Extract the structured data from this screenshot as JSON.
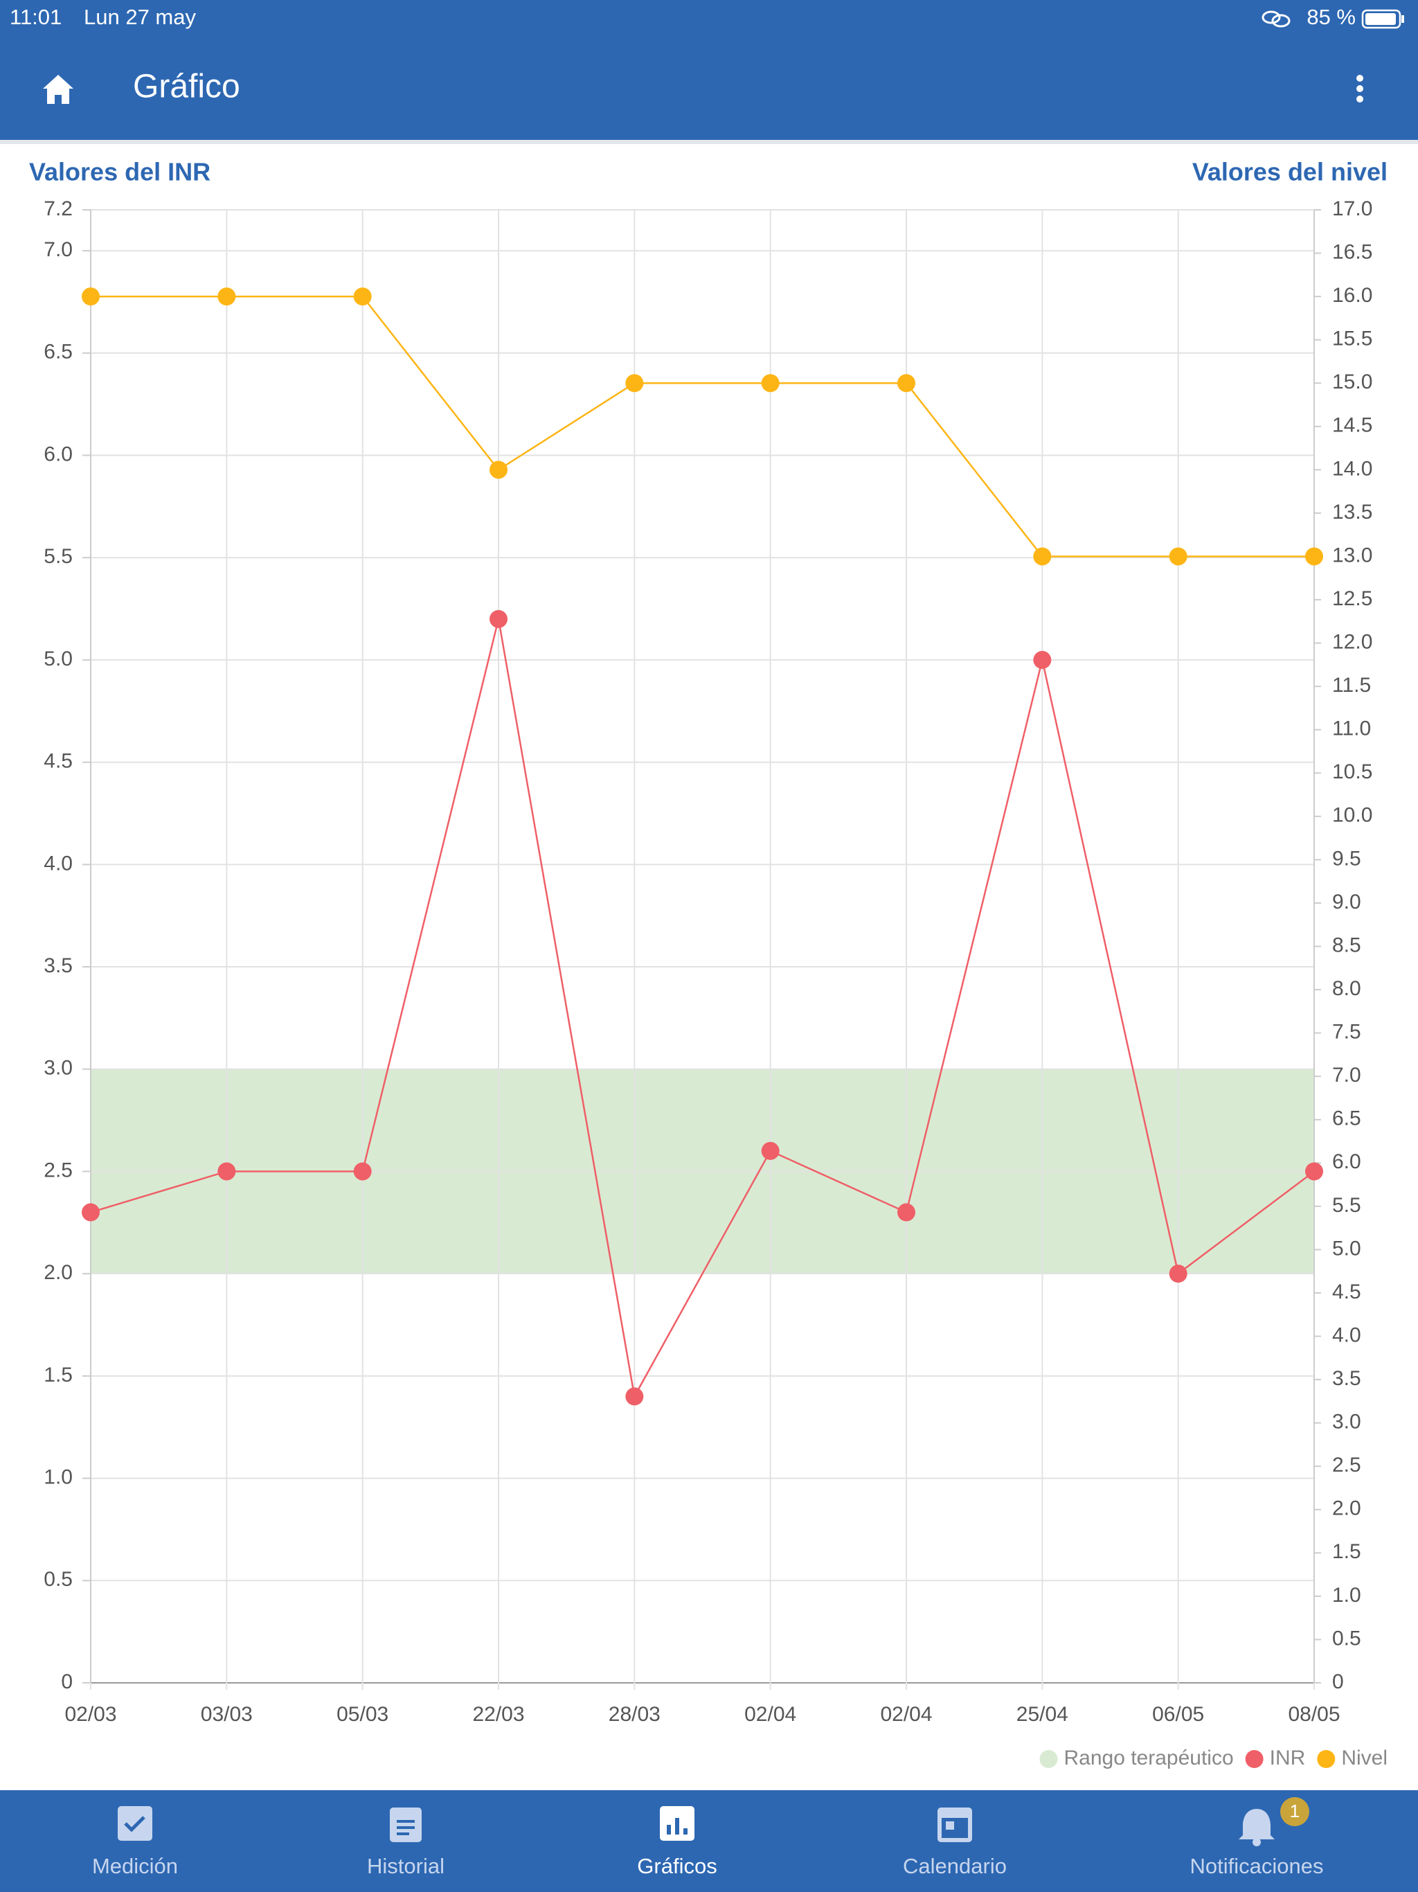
{
  "status_bar": {
    "time": "11:01",
    "date": "Lun 27 may",
    "battery": "85 %"
  },
  "app_bar": {
    "title": "Gráfico"
  },
  "chart_data": {
    "type": "line",
    "y_title": "Valores del INR",
    "y2_title": "Valores del nivel",
    "categories": [
      "02/03",
      "03/03",
      "05/03",
      "22/03",
      "28/03",
      "02/04",
      "02/04",
      "25/04",
      "06/05",
      "08/05"
    ],
    "series": [
      {
        "name": "INR",
        "color": "#ef5f67",
        "values": [
          2.3,
          2.5,
          2.5,
          5.2,
          1.4,
          2.6,
          2.3,
          5.0,
          2.0,
          2.5
        ]
      },
      {
        "name": "Nivel",
        "color": "#fdb515",
        "axis": "y2",
        "values": [
          16,
          16,
          16,
          14,
          15,
          15,
          15,
          13,
          13,
          13
        ]
      }
    ],
    "band": {
      "name": "Rango terapéutico",
      "color": "#d9ead3",
      "range": [
        2,
        3
      ]
    },
    "ylim": [
      0,
      7.2
    ],
    "yticks": [
      0,
      0.5,
      {
        "value": 1,
        "label": "1.0"
      },
      1.5,
      {
        "value": 2,
        "label": "2.0"
      },
      2.5,
      {
        "value": 3,
        "label": "3.0"
      },
      3.5,
      {
        "value": 4,
        "label": "4.0"
      },
      4.5,
      {
        "value": 5,
        "label": "5.0"
      },
      5.5,
      {
        "value": 6,
        "label": "6.0"
      },
      6.5,
      {
        "value": 7,
        "label": "7.0"
      },
      7.2
    ],
    "y2lim": [
      0,
      17
    ],
    "y2ticks": [
      0,
      0.5,
      {
        "value": 1,
        "label": "1.0"
      },
      1.5,
      {
        "value": 2,
        "label": "2.0"
      },
      2.5,
      {
        "value": 3,
        "label": "3.0"
      },
      3.5,
      {
        "value": 4,
        "label": "4.0"
      },
      4.5,
      {
        "value": 5,
        "label": "5.0"
      },
      5.5,
      {
        "value": 6,
        "label": "6.0"
      },
      6.5,
      {
        "value": 7,
        "label": "7.0"
      },
      7.5,
      {
        "value": 8,
        "label": "8.0"
      },
      8.5,
      {
        "value": 9,
        "label": "9.0"
      },
      9.5,
      {
        "value": 10,
        "label": "10.0"
      },
      10.5,
      {
        "value": 11,
        "label": "11.0"
      },
      11.5,
      {
        "value": 12,
        "label": "12.0"
      },
      12.5,
      {
        "value": 13,
        "label": "13.0"
      },
      13.5,
      {
        "value": 14,
        "label": "14.0"
      },
      14.5,
      {
        "value": 15,
        "label": "15.0"
      },
      15.5,
      {
        "value": 16,
        "label": "16.0"
      },
      16.5,
      {
        "value": 17,
        "label": "17.0"
      }
    ],
    "grid": true
  },
  "tabs": [
    {
      "label": "Medición"
    },
    {
      "label": "Historial"
    },
    {
      "label": "Gráficos"
    },
    {
      "label": "Calendario"
    },
    {
      "label": "Notificaciones",
      "badge": "1"
    }
  ]
}
